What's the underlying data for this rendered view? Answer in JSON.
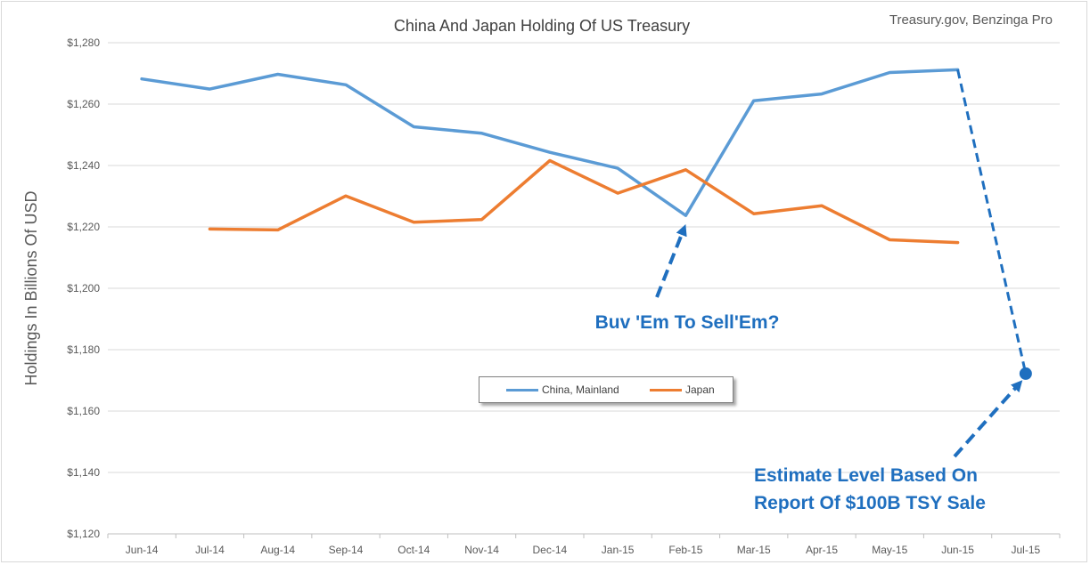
{
  "source_note": "Treasury.gov, Benzinga Pro",
  "annotations": {
    "buy_sell": "Buv 'Em To Sell'Em?",
    "estimate_line1": "Estimate Level Based On",
    "estimate_line2": "Report Of $100B TSY Sale"
  },
  "colors": {
    "china": "#5b9bd5",
    "japan": "#ed7d31",
    "annotation": "#1f6fbf",
    "grid": "#d9d9d9",
    "axis_text": "#595959"
  },
  "chart_data": {
    "type": "line",
    "title": "China And Japan Holding Of US Treasury",
    "xlabel": "",
    "ylabel": "Holdings In Billions Of USD",
    "categories": [
      "Jun-14",
      "Jul-14",
      "Aug-14",
      "Sep-14",
      "Oct-14",
      "Nov-14",
      "Dec-14",
      "Jan-15",
      "Feb-15",
      "Mar-15",
      "Apr-15",
      "May-15",
      "Jun-15",
      "Jul-15"
    ],
    "ylim": [
      1120,
      1280
    ],
    "yticks": [
      1120,
      1140,
      1160,
      1180,
      1200,
      1220,
      1240,
      1260,
      1280
    ],
    "ytick_labels": [
      "$1,120",
      "$1,140",
      "$1,160",
      "$1,180",
      "$1,200",
      "$1,220",
      "$1,240",
      "$1,260",
      "$1,280"
    ],
    "grid": true,
    "legend_position": "center",
    "series": [
      {
        "name": "China, Mainland",
        "color": "#5b9bd5",
        "values": [
          1268.2,
          1264.9,
          1269.7,
          1266.3,
          1252.6,
          1250.5,
          1244.3,
          1239.1,
          1223.7,
          1261.1,
          1263.3,
          1270.3,
          1271.2,
          null
        ]
      },
      {
        "name": "Japan",
        "color": "#ed7d31",
        "values": [
          null,
          1219.3,
          1219.0,
          1230.1,
          1221.5,
          1222.4,
          1241.6,
          1231.0,
          1238.6,
          1224.3,
          1226.9,
          1215.8,
          1214.9,
          null
        ]
      }
    ],
    "projection": {
      "from": {
        "x": "Jun-15",
        "y": 1271.2
      },
      "to": {
        "x": "Jul-15",
        "y": 1172.2
      }
    }
  }
}
